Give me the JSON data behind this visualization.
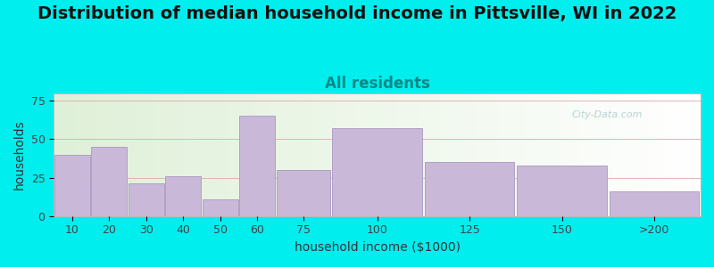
{
  "title": "Distribution of median household income in Pittsville, WI in 2022",
  "subtitle": "All residents",
  "xlabel": "household income ($1000)",
  "ylabel": "households",
  "background_color": "#00EEEE",
  "bar_color": "#c9b8d8",
  "bar_edge_color": "#b0a0c8",
  "categories": [
    "10",
    "20",
    "30",
    "40",
    "50",
    "60",
    "75",
    "100",
    "125",
    "150",
    ">200"
  ],
  "values": [
    40,
    45,
    21,
    26,
    11,
    65,
    30,
    57,
    35,
    33,
    16
  ],
  "bar_lefts": [
    0,
    10,
    20,
    30,
    40,
    50,
    60,
    75,
    100,
    125,
    150
  ],
  "bar_rights": [
    10,
    20,
    30,
    40,
    50,
    60,
    75,
    100,
    125,
    150,
    175
  ],
  "xlim": [
    0,
    175
  ],
  "ylim": [
    0,
    80
  ],
  "yticks": [
    0,
    25,
    50,
    75
  ],
  "title_fontsize": 14,
  "subtitle_fontsize": 12,
  "axis_label_fontsize": 10,
  "tick_fontsize": 9,
  "watermark_text": "City-Data.com"
}
